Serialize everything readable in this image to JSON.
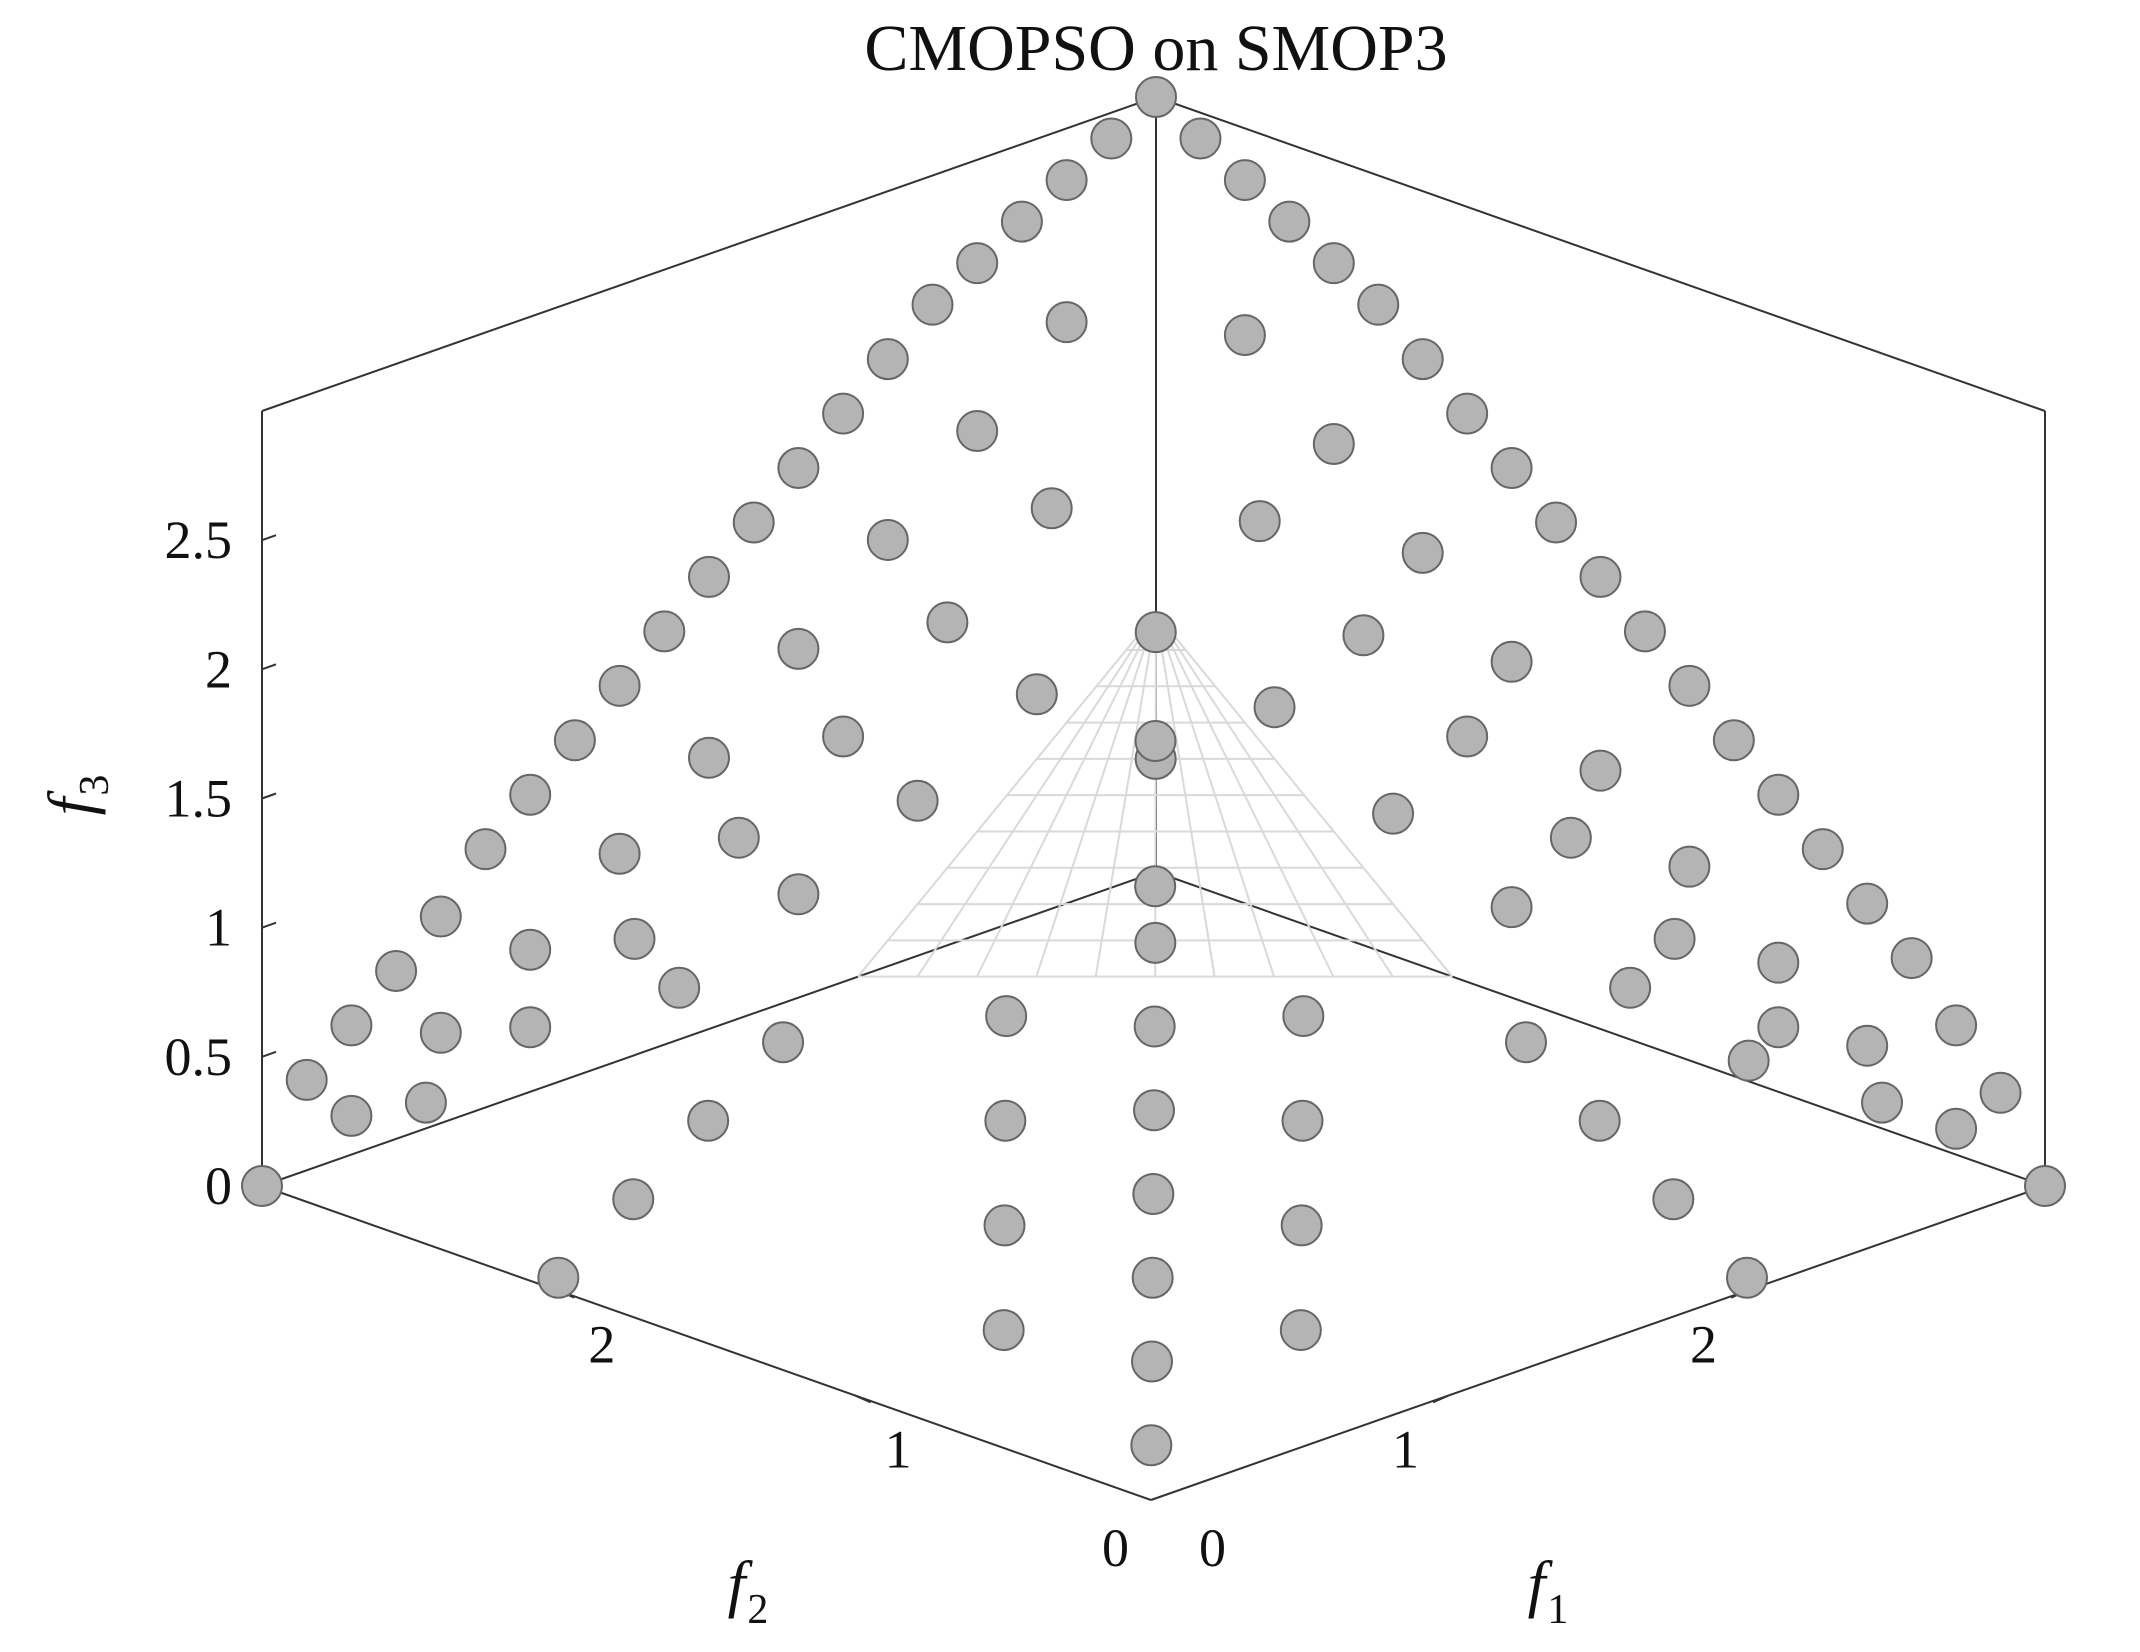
{
  "chart_data": {
    "type": "scatter",
    "title": "CMOPSO on SMOP3",
    "xlabel": {
      "base": "f",
      "sub": "1"
    },
    "ylabel": {
      "base": "f",
      "sub": "2"
    },
    "zlabel": {
      "base": "f",
      "sub": "3"
    },
    "xlim": [
      0,
      3
    ],
    "ylim": [
      0,
      3
    ],
    "zlim": [
      0,
      3
    ],
    "x_ticks": [
      "0",
      "1",
      "2"
    ],
    "y_ticks": [
      "0",
      "1",
      "2"
    ],
    "z_ticks": [
      "0",
      "0.5",
      "1",
      "1.5",
      "2",
      "2.5"
    ],
    "grid": false,
    "view": "isometric",
    "pareto_front": {
      "type": "mesh",
      "vertices": [
        [
          0,
          0,
          1
        ],
        [
          1,
          0,
          0
        ],
        [
          0,
          1,
          0
        ]
      ],
      "color": "#d9d9d9"
    },
    "series": [
      {
        "marker_color": "#b4b4b4",
        "edge_color": "#666666",
        "points": [
          [
            0,
            0,
            3
          ],
          [
            0.15,
            0,
            2.9
          ],
          [
            0.3,
            0,
            2.8
          ],
          [
            0.45,
            0,
            2.7
          ],
          [
            0.6,
            0,
            2.6
          ],
          [
            0.75,
            0,
            2.5
          ],
          [
            0.9,
            0,
            2.35
          ],
          [
            1.05,
            0,
            2.2
          ],
          [
            1.2,
            0,
            2.05
          ],
          [
            1.35,
            0,
            1.9
          ],
          [
            1.5,
            0,
            1.75
          ],
          [
            1.65,
            0,
            1.6
          ],
          [
            1.8,
            0,
            1.45
          ],
          [
            1.95,
            0,
            1.3
          ],
          [
            2.1,
            0,
            1.15
          ],
          [
            2.25,
            0,
            1.0
          ],
          [
            2.4,
            0,
            0.85
          ],
          [
            2.55,
            0,
            0.7
          ],
          [
            2.7,
            0,
            0.5
          ],
          [
            2.85,
            0,
            0.3
          ],
          [
            3.0,
            0,
            0
          ],
          [
            0.3,
            0,
            2.2
          ],
          [
            0.6,
            0,
            1.9
          ],
          [
            0.9,
            0,
            1.6
          ],
          [
            1.2,
            0,
            1.3
          ],
          [
            1.5,
            0,
            1.0
          ],
          [
            1.8,
            0,
            0.75
          ],
          [
            2.1,
            0,
            0.5
          ],
          [
            2.4,
            0,
            0.3
          ],
          [
            2.7,
            0,
            0.1
          ],
          [
            0.35,
            0,
            1.5
          ],
          [
            0.7,
            0,
            1.2
          ],
          [
            1.05,
            0,
            0.95
          ],
          [
            1.4,
            0,
            0.7
          ],
          [
            1.75,
            0,
            0.45
          ],
          [
            2.1,
            0,
            0.25
          ],
          [
            2.45,
            0,
            0.1
          ],
          [
            0.4,
            0,
            0.8
          ],
          [
            0.8,
            0,
            0.55
          ],
          [
            1.2,
            0,
            0.35
          ],
          [
            1.6,
            0,
            0.2
          ],
          [
            2.0,
            0,
            0.08
          ],
          [
            0,
            0.15,
            2.9
          ],
          [
            0,
            0.3,
            2.8
          ],
          [
            0,
            0.45,
            2.7
          ],
          [
            0,
            0.6,
            2.6
          ],
          [
            0,
            0.75,
            2.5
          ],
          [
            0,
            0.9,
            2.35
          ],
          [
            0,
            1.05,
            2.2
          ],
          [
            0,
            1.2,
            2.05
          ],
          [
            0,
            1.35,
            1.9
          ],
          [
            0,
            1.5,
            1.75
          ],
          [
            0,
            1.65,
            1.6
          ],
          [
            0,
            1.8,
            1.45
          ],
          [
            0,
            1.95,
            1.3
          ],
          [
            0,
            2.1,
            1.15
          ],
          [
            0,
            2.25,
            1.0
          ],
          [
            0,
            2.4,
            0.8
          ],
          [
            0,
            2.55,
            0.65
          ],
          [
            0,
            2.7,
            0.5
          ],
          [
            0,
            2.85,
            0.35
          ],
          [
            0,
            3.0,
            0
          ],
          [
            0,
            0.3,
            2.25
          ],
          [
            0,
            0.6,
            1.95
          ],
          [
            0,
            0.9,
            1.65
          ],
          [
            0,
            1.2,
            1.35
          ],
          [
            0,
            1.5,
            1.05
          ],
          [
            0,
            1.8,
            0.8
          ],
          [
            0,
            2.1,
            0.55
          ],
          [
            0,
            2.4,
            0.35
          ],
          [
            0,
            2.7,
            0.15
          ],
          [
            0,
            0.35,
            1.55
          ],
          [
            0,
            0.7,
            1.25
          ],
          [
            0,
            1.05,
            0.95
          ],
          [
            0,
            1.4,
            0.7
          ],
          [
            0,
            1.75,
            0.45
          ],
          [
            0,
            2.1,
            0.25
          ],
          [
            0,
            2.45,
            0.1
          ],
          [
            0,
            0.4,
            0.85
          ],
          [
            0,
            0.8,
            0.6
          ],
          [
            0,
            1.2,
            0.4
          ],
          [
            0,
            1.6,
            0.2
          ],
          [
            0.4,
            0.4,
            0.05
          ],
          [
            0.8,
            0.8,
            0.05
          ],
          [
            1.2,
            1.2,
            0.05
          ],
          [
            1.6,
            1.6,
            0.05
          ],
          [
            2.0,
            2.0,
            0.05
          ],
          [
            2.4,
            2.4,
            0.05
          ],
          [
            2.8,
            2.8,
            0.05
          ],
          [
            0.5,
            1.0,
            0.05
          ],
          [
            1.0,
            0.5,
            0.05
          ],
          [
            1.0,
            1.5,
            0.05
          ],
          [
            1.5,
            1.0,
            0.05
          ],
          [
            1.5,
            2.0,
            0.05
          ],
          [
            2.0,
            1.5,
            0.05
          ],
          [
            2.0,
            2.5,
            0.05
          ],
          [
            2.5,
            2.0,
            0.05
          ],
          [
            0.25,
            1.5,
            0.05
          ],
          [
            1.5,
            0.25,
            0.05
          ],
          [
            0.5,
            2.0,
            0.05
          ],
          [
            2.0,
            0.5,
            0.05
          ],
          [
            0.75,
            2.5,
            0.05
          ],
          [
            2.5,
            0.75,
            0.05
          ],
          [
            1.0,
            3.0,
            0.05
          ],
          [
            3.0,
            1.0,
            0.05
          ],
          [
            0.2,
            0.2,
            0.6
          ],
          [
            0.5,
            0.5,
            0.35
          ],
          [
            0.15,
            0.15,
            1.05
          ],
          [
            0.3,
            0.3,
            0.75
          ]
        ]
      }
    ]
  }
}
